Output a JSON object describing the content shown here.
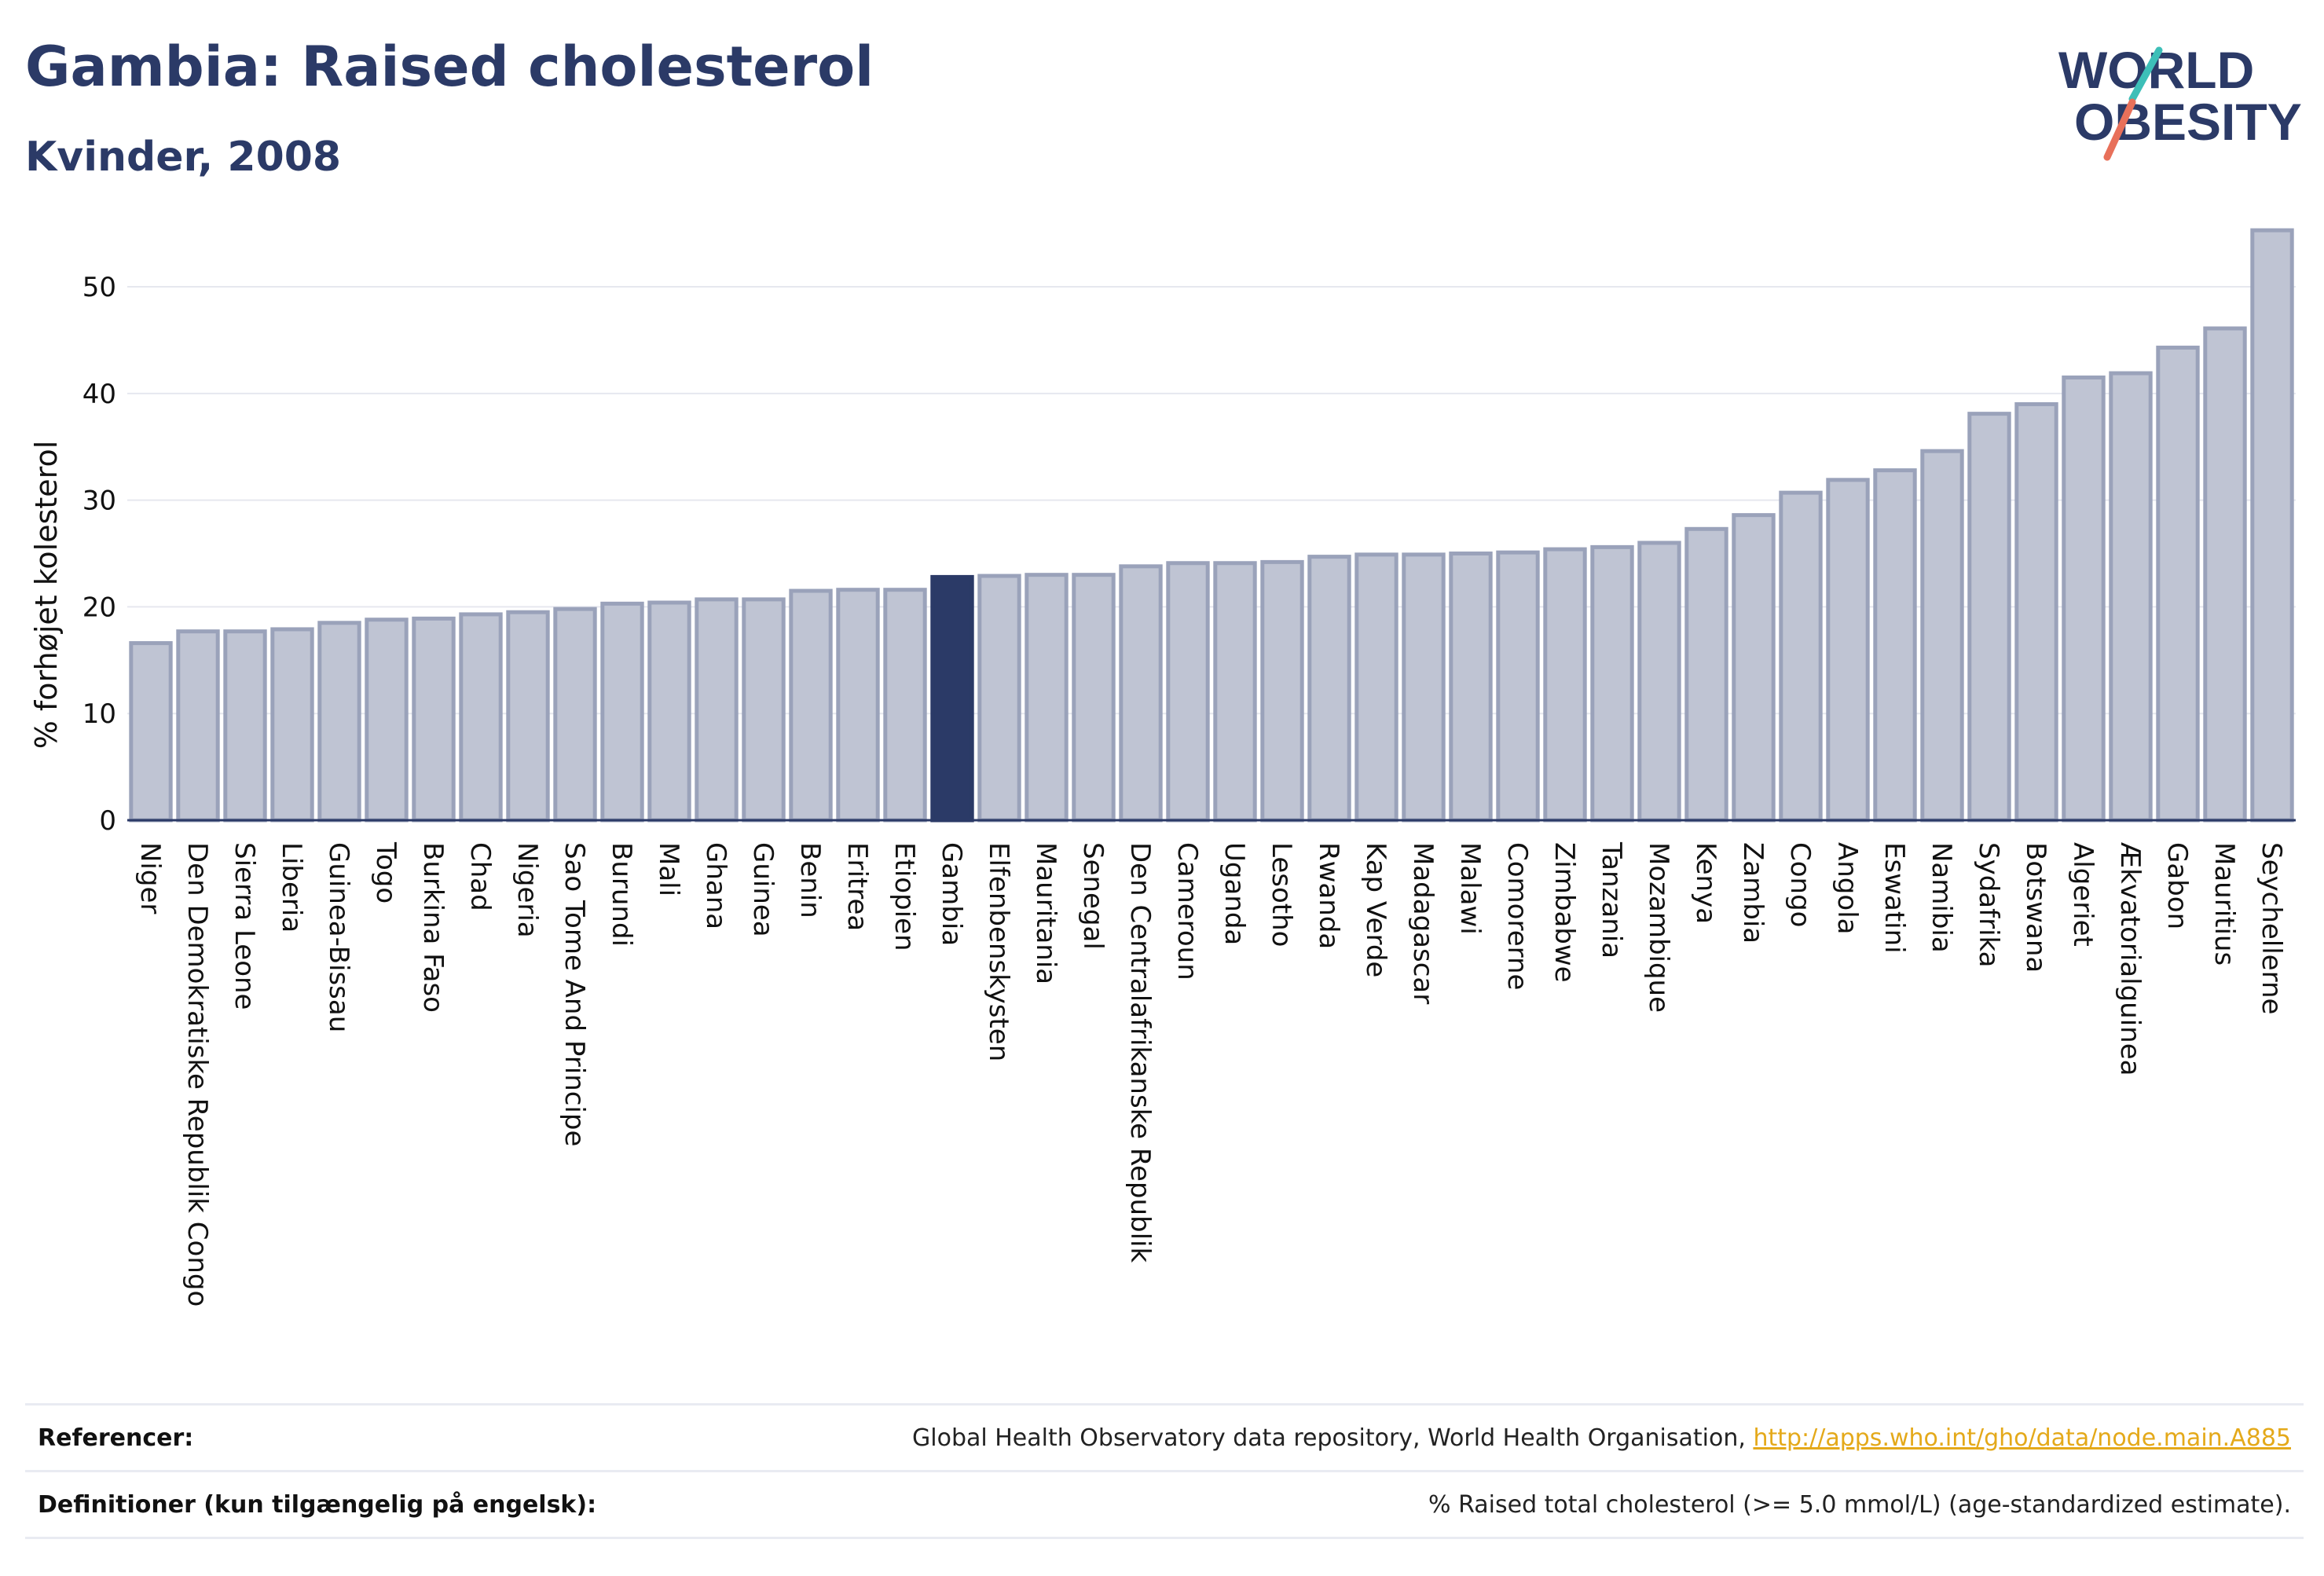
{
  "header": {
    "title": "Gambia: Raised cholesterol",
    "subtitle": "Kvinder, 2008"
  },
  "logo": {
    "line1": "WORLD",
    "line2": "OBESITY",
    "icon": "world-obesity-logo"
  },
  "colors": {
    "brand": "#2b3a67",
    "bar_default": "#bfc4d3",
    "bar_border": "#9aa2ba",
    "bar_highlight": "#2b3a67",
    "link": "#e4a91a",
    "logo_teal": "#3dbfb8",
    "logo_coral": "#e8705a"
  },
  "chart_data": {
    "type": "bar",
    "title": "Gambia: Raised cholesterol",
    "subtitle": "Kvinder, 2008",
    "ylabel": "% forhøjet kolesterol",
    "xlabel": "",
    "ylim": [
      0,
      57
    ],
    "yticks": [
      0,
      10,
      20,
      30,
      40,
      50
    ],
    "grid": true,
    "highlight": "Gambia",
    "categories": [
      "Niger",
      "Den Demokratiske Republik Congo",
      "Sierra Leone",
      "Liberia",
      "Guinea-Bissau",
      "Togo",
      "Burkina Faso",
      "Chad",
      "Nigeria",
      "Sao Tome And Principe",
      "Burundi",
      "Mali",
      "Ghana",
      "Guinea",
      "Benin",
      "Eritrea",
      "Etiopien",
      "Gambia",
      "Elfenbenskysten",
      "Mauritania",
      "Senegal",
      "Den Centralafrikanske Republik",
      "Cameroun",
      "Uganda",
      "Lesotho",
      "Rwanda",
      "Kap Verde",
      "Madagascar",
      "Malawi",
      "Comorerne",
      "Zimbabwe",
      "Tanzania",
      "Mozambique",
      "Kenya",
      "Zambia",
      "Congo",
      "Angola",
      "Eswatini",
      "Namibia",
      "Sydafrika",
      "Botswana",
      "Algeriet",
      "Ækvatorialguinea",
      "Gabon",
      "Mauritius",
      "Seychellerne"
    ],
    "values": [
      16.6,
      17.7,
      17.7,
      17.9,
      18.5,
      18.8,
      18.9,
      19.3,
      19.5,
      19.8,
      20.3,
      20.4,
      20.7,
      20.7,
      21.5,
      21.6,
      21.6,
      22.8,
      22.9,
      23.0,
      23.0,
      23.8,
      24.1,
      24.1,
      24.2,
      24.7,
      24.9,
      24.9,
      25.0,
      25.1,
      25.4,
      25.6,
      26.0,
      27.3,
      28.6,
      30.7,
      31.9,
      32.8,
      34.6,
      38.1,
      39.0,
      41.5,
      41.9,
      44.3,
      46.1,
      55.3
    ]
  },
  "footer": {
    "references_label": "Referencer:",
    "references_text": "Global Health Observatory data repository, World Health Organisation, ",
    "references_link": "http://apps.who.int/gho/data/node.main.A885",
    "definitions_label": "Definitioner (kun tilgængelig på engelsk):",
    "definitions_text": "% Raised total cholesterol (>= 5.0 mmol/L) (age-standardized estimate)."
  }
}
